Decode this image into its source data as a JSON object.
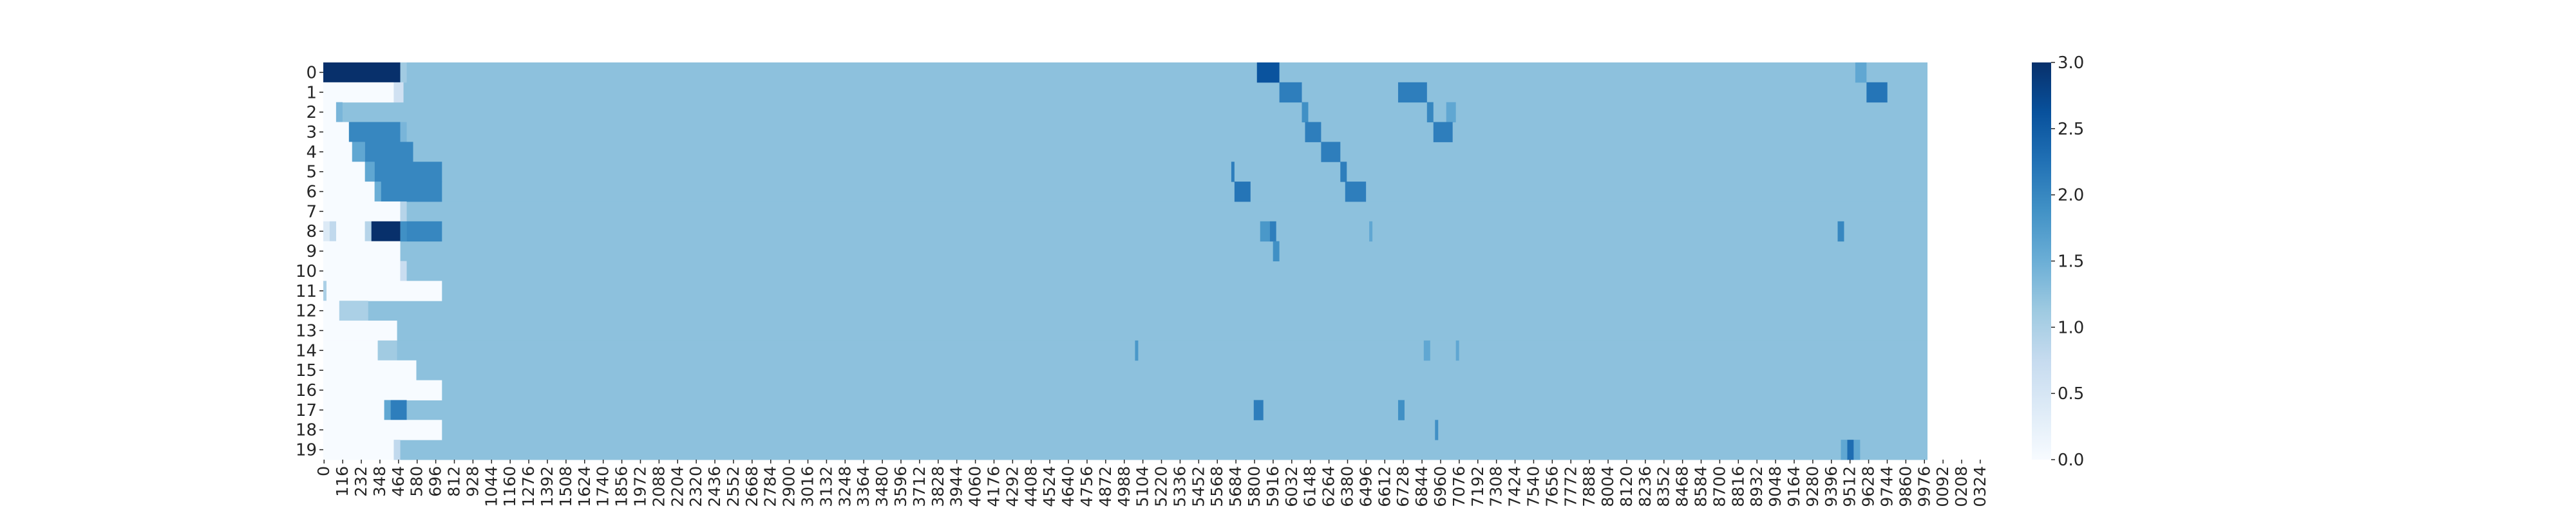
{
  "chart_data": {
    "type": "heatmap",
    "title": "",
    "xlabel": "",
    "ylabel": "",
    "colormap": "Blues",
    "color_low": "#f7fbff",
    "color_high": "#08306b",
    "value_range": [
      0,
      3
    ],
    "n_rows": 20,
    "n_cols": 1000,
    "row_labels": [
      "0",
      "1",
      "2",
      "3",
      "4",
      "5",
      "6",
      "7",
      "8",
      "9",
      "10",
      "11",
      "12",
      "13",
      "14",
      "15",
      "16",
      "17",
      "18",
      "19"
    ],
    "x_tick_step": 116,
    "x_tick_labels": [
      "0",
      "116",
      "232",
      "348",
      "464",
      "580",
      "696",
      "812",
      "928",
      "1044",
      "1160",
      "1276",
      "1392",
      "1508",
      "1624",
      "1740",
      "1856",
      "1972",
      "2088",
      "2204",
      "2320",
      "2436",
      "2552",
      "2668",
      "2784",
      "2900",
      "3016",
      "3132",
      "3248",
      "3364",
      "3480",
      "3596",
      "3712",
      "3828",
      "3944",
      "4060",
      "4176",
      "4292",
      "4408",
      "4524",
      "4640",
      "4756",
      "4872",
      "4988",
      "5104",
      "5220",
      "5336",
      "5452",
      "5568",
      "5684",
      "5800",
      "5916",
      "6032",
      "6148",
      "6264",
      "6380",
      "6496",
      "6612",
      "6728",
      "6844",
      "6960",
      "7076",
      "7192",
      "7308",
      "7424",
      "7540",
      "7656",
      "7772",
      "7888",
      "8004",
      "8120",
      "8236",
      "8352",
      "8468",
      "8584",
      "8700",
      "8816",
      "8932",
      "9048",
      "9164",
      "9280",
      "9396",
      "9512",
      "9628",
      "9744",
      "9860",
      "9976",
      "0092",
      "0208",
      "0324"
    ],
    "colorbar_ticks": [
      "0.0",
      "0.5",
      "1.0",
      "1.5",
      "2.0",
      "2.5",
      "3.0"
    ],
    "background_value": 1.25,
    "segments": [
      {
        "row": 0,
        "from": 0,
        "to": 48,
        "value": 3.0
      },
      {
        "row": 0,
        "from": 48,
        "to": 52,
        "value": 1.1
      },
      {
        "row": 0,
        "from": 582,
        "to": 596,
        "value": 2.6
      },
      {
        "row": 0,
        "from": 955,
        "to": 962,
        "value": 1.6
      },
      {
        "row": 1,
        "from": 0,
        "to": 44,
        "value": 0.0
      },
      {
        "row": 1,
        "from": 44,
        "to": 50,
        "value": 0.6
      },
      {
        "row": 1,
        "from": 596,
        "to": 610,
        "value": 2.1
      },
      {
        "row": 1,
        "from": 670,
        "to": 688,
        "value": 2.1
      },
      {
        "row": 1,
        "from": 962,
        "to": 975,
        "value": 2.2
      },
      {
        "row": 2,
        "from": 0,
        "to": 8,
        "value": 0.0
      },
      {
        "row": 2,
        "from": 8,
        "to": 12,
        "value": 1.4
      },
      {
        "row": 2,
        "from": 610,
        "to": 614,
        "value": 1.9
      },
      {
        "row": 2,
        "from": 688,
        "to": 692,
        "value": 2.0
      },
      {
        "row": 2,
        "from": 700,
        "to": 706,
        "value": 1.6
      },
      {
        "row": 3,
        "from": 0,
        "to": 16,
        "value": 0.0
      },
      {
        "row": 3,
        "from": 16,
        "to": 48,
        "value": 2.0
      },
      {
        "row": 3,
        "from": 48,
        "to": 52,
        "value": 1.4
      },
      {
        "row": 3,
        "from": 612,
        "to": 622,
        "value": 2.1
      },
      {
        "row": 3,
        "from": 692,
        "to": 704,
        "value": 2.1
      },
      {
        "row": 4,
        "from": 0,
        "to": 18,
        "value": 0.0
      },
      {
        "row": 4,
        "from": 18,
        "to": 26,
        "value": 1.6
      },
      {
        "row": 4,
        "from": 26,
        "to": 56,
        "value": 2.0
      },
      {
        "row": 4,
        "from": 622,
        "to": 634,
        "value": 2.1
      },
      {
        "row": 5,
        "from": 0,
        "to": 26,
        "value": 0.0
      },
      {
        "row": 5,
        "from": 26,
        "to": 32,
        "value": 1.6
      },
      {
        "row": 5,
        "from": 32,
        "to": 74,
        "value": 2.0
      },
      {
        "row": 5,
        "from": 566,
        "to": 568,
        "value": 2.1
      },
      {
        "row": 5,
        "from": 634,
        "to": 638,
        "value": 2.1
      },
      {
        "row": 6,
        "from": 0,
        "to": 32,
        "value": 0.0
      },
      {
        "row": 6,
        "from": 32,
        "to": 36,
        "value": 1.5
      },
      {
        "row": 6,
        "from": 36,
        "to": 74,
        "value": 2.0
      },
      {
        "row": 6,
        "from": 568,
        "to": 578,
        "value": 2.2
      },
      {
        "row": 6,
        "from": 637,
        "to": 650,
        "value": 2.1
      },
      {
        "row": 7,
        "from": 0,
        "to": 48,
        "value": 0.0
      },
      {
        "row": 7,
        "from": 48,
        "to": 52,
        "value": 0.9
      },
      {
        "row": 8,
        "from": 0,
        "to": 4,
        "value": 0.4
      },
      {
        "row": 8,
        "from": 4,
        "to": 8,
        "value": 0.8
      },
      {
        "row": 8,
        "from": 8,
        "to": 26,
        "value": 0.0
      },
      {
        "row": 8,
        "from": 26,
        "to": 30,
        "value": 0.9
      },
      {
        "row": 8,
        "from": 30,
        "to": 48,
        "value": 3.0
      },
      {
        "row": 8,
        "from": 48,
        "to": 52,
        "value": 1.9
      },
      {
        "row": 8,
        "from": 52,
        "to": 74,
        "value": 2.0
      },
      {
        "row": 8,
        "from": 584,
        "to": 590,
        "value": 1.8
      },
      {
        "row": 8,
        "from": 590,
        "to": 594,
        "value": 2.1
      },
      {
        "row": 8,
        "from": 652,
        "to": 654,
        "value": 1.6
      },
      {
        "row": 8,
        "from": 944,
        "to": 948,
        "value": 2.0
      },
      {
        "row": 9,
        "from": 0,
        "to": 48,
        "value": 0.0
      },
      {
        "row": 9,
        "from": 592,
        "to": 596,
        "value": 1.9
      },
      {
        "row": 10,
        "from": 0,
        "to": 48,
        "value": 0.0
      },
      {
        "row": 10,
        "from": 48,
        "to": 52,
        "value": 0.7
      },
      {
        "row": 11,
        "from": 0,
        "to": 2,
        "value": 1.0
      },
      {
        "row": 11,
        "from": 2,
        "to": 74,
        "value": 0.0
      },
      {
        "row": 12,
        "from": 0,
        "to": 10,
        "value": 0.0
      },
      {
        "row": 12,
        "from": 10,
        "to": 28,
        "value": 1.0
      },
      {
        "row": 13,
        "from": 0,
        "to": 46,
        "value": 0.0
      },
      {
        "row": 14,
        "from": 0,
        "to": 34,
        "value": 0.0
      },
      {
        "row": 14,
        "from": 34,
        "to": 46,
        "value": 1.1
      },
      {
        "row": 14,
        "from": 506,
        "to": 508,
        "value": 1.8
      },
      {
        "row": 14,
        "from": 686,
        "to": 690,
        "value": 1.6
      },
      {
        "row": 14,
        "from": 706,
        "to": 708,
        "value": 1.6
      },
      {
        "row": 15,
        "from": 0,
        "to": 58,
        "value": 0.0
      },
      {
        "row": 16,
        "from": 0,
        "to": 74,
        "value": 0.0
      },
      {
        "row": 17,
        "from": 0,
        "to": 38,
        "value": 0.0
      },
      {
        "row": 17,
        "from": 38,
        "to": 42,
        "value": 1.6
      },
      {
        "row": 17,
        "from": 42,
        "to": 52,
        "value": 2.1
      },
      {
        "row": 17,
        "from": 580,
        "to": 586,
        "value": 2.1
      },
      {
        "row": 17,
        "from": 670,
        "to": 674,
        "value": 1.9
      },
      {
        "row": 18,
        "from": 0,
        "to": 74,
        "value": 0.0
      },
      {
        "row": 18,
        "from": 693,
        "to": 695,
        "value": 1.9
      },
      {
        "row": 19,
        "from": 0,
        "to": 44,
        "value": 0.0
      },
      {
        "row": 19,
        "from": 44,
        "to": 48,
        "value": 0.8
      },
      {
        "row": 19,
        "from": 946,
        "to": 950,
        "value": 1.6
      },
      {
        "row": 19,
        "from": 950,
        "to": 954,
        "value": 2.3
      },
      {
        "row": 19,
        "from": 954,
        "to": 958,
        "value": 1.6
      }
    ]
  }
}
